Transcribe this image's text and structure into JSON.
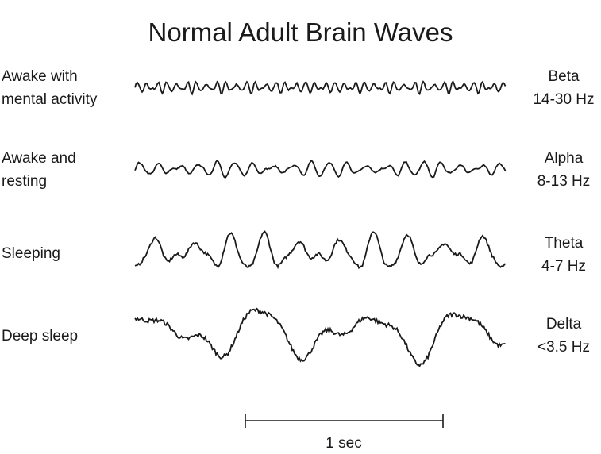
{
  "title": "Normal Adult Brain Waves",
  "rows": [
    {
      "state": [
        "Awake with",
        "mental activity"
      ],
      "band": "Beta",
      "range": "14-30 Hz"
    },
    {
      "state": [
        "Awake and",
        "resting"
      ],
      "band": "Alpha",
      "range": "8-13 Hz"
    },
    {
      "state": [
        "Sleeping"
      ],
      "band": "Theta",
      "range": "4-7 Hz"
    },
    {
      "state": [
        "Deep sleep"
      ],
      "band": "Delta",
      "range": "<3.5 Hz"
    }
  ],
  "scale_bar": {
    "label": "1 sec"
  },
  "line_color": "#1a1a1a"
}
